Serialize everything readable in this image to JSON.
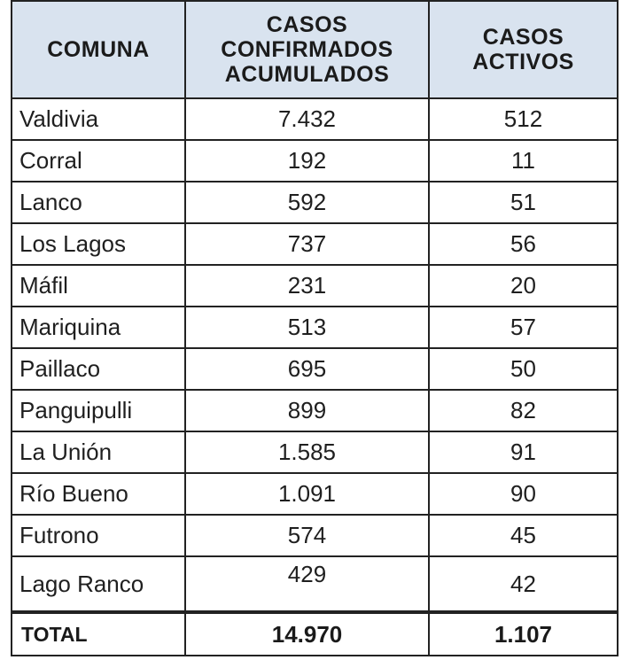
{
  "table": {
    "headers": {
      "comuna": "COMUNA",
      "confirmados": "CASOS\nCONFIRMADOS\nACUMULADOS",
      "activos": "CASOS\nACTIVOS"
    },
    "rows": [
      {
        "comuna": "Valdivia",
        "confirmados": "7.432",
        "activos": "512"
      },
      {
        "comuna": "Corral",
        "confirmados": "192",
        "activos": "11"
      },
      {
        "comuna": "Lanco",
        "confirmados": "592",
        "activos": "51"
      },
      {
        "comuna": "Los Lagos",
        "confirmados": "737",
        "activos": "56"
      },
      {
        "comuna": "Máfil",
        "confirmados": "231",
        "activos": "20"
      },
      {
        "comuna": "Mariquina",
        "confirmados": "513",
        "activos": "57"
      },
      {
        "comuna": "Paillaco",
        "confirmados": "695",
        "activos": "50"
      },
      {
        "comuna": "Panguipulli",
        "confirmados": "899",
        "activos": "82"
      },
      {
        "comuna": "La Unión",
        "confirmados": "1.585",
        "activos": "91"
      },
      {
        "comuna": "Río Bueno",
        "confirmados": "1.091",
        "activos": "90"
      },
      {
        "comuna": "Futrono",
        "confirmados": "574",
        "activos": "45"
      },
      {
        "comuna": "Lago Ranco",
        "confirmados": "429",
        "activos": "42"
      }
    ],
    "total": {
      "label": "TOTAL",
      "confirmados": "14.970",
      "activos": "1.107"
    }
  }
}
